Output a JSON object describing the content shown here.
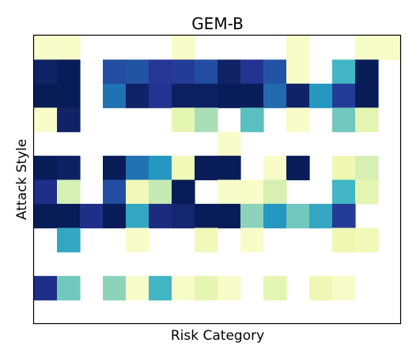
{
  "chart_data": {
    "type": "heatmap",
    "title": "GEM-B",
    "xlabel": "Risk Category",
    "ylabel": "Attack Style",
    "colormap": "YlGnBu",
    "missing_color": "#ffffff",
    "value_range": [
      0,
      1
    ],
    "n_rows": 12,
    "n_cols": 16,
    "grid": false,
    "values": [
      [
        0.05,
        0.05,
        null,
        null,
        null,
        null,
        0.05,
        null,
        null,
        null,
        null,
        0.05,
        null,
        null,
        0.05,
        0.05
      ],
      [
        0.97,
        1.0,
        null,
        0.8,
        0.78,
        0.87,
        0.85,
        0.8,
        0.97,
        0.88,
        0.78,
        0.05,
        null,
        0.5,
        1.0,
        null
      ],
      [
        1.0,
        1.0,
        null,
        0.7,
        0.97,
        0.88,
        0.98,
        0.98,
        1.0,
        1.0,
        0.72,
        0.97,
        0.6,
        0.85,
        1.0,
        null
      ],
      [
        0.05,
        0.97,
        null,
        null,
        null,
        null,
        0.15,
        0.3,
        null,
        0.45,
        null,
        0.05,
        null,
        0.4,
        0.15,
        null
      ],
      [
        null,
        null,
        null,
        null,
        null,
        null,
        null,
        null,
        0.05,
        null,
        null,
        null,
        null,
        null,
        null,
        null
      ],
      [
        1.0,
        0.98,
        null,
        1.0,
        0.7,
        0.6,
        0.1,
        1.0,
        1.0,
        null,
        0.05,
        1.0,
        null,
        0.12,
        0.2,
        null
      ],
      [
        0.9,
        0.2,
        null,
        0.8,
        0.1,
        0.25,
        1.0,
        null,
        0.05,
        0.05,
        0.2,
        null,
        null,
        0.5,
        0.15,
        null
      ],
      [
        1.0,
        1.0,
        0.9,
        1.0,
        0.55,
        0.92,
        0.95,
        1.0,
        1.0,
        0.35,
        0.6,
        0.4,
        0.55,
        0.85,
        null,
        null
      ],
      [
        null,
        0.55,
        null,
        null,
        0.05,
        null,
        null,
        0.1,
        null,
        0.05,
        null,
        null,
        null,
        0.12,
        0.1,
        null
      ],
      [
        null,
        null,
        null,
        null,
        null,
        null,
        null,
        null,
        null,
        null,
        null,
        null,
        null,
        null,
        null,
        null
      ],
      [
        0.9,
        0.4,
        null,
        0.35,
        0.05,
        0.5,
        0.05,
        0.15,
        0.05,
        null,
        0.15,
        null,
        0.12,
        0.05,
        null,
        null
      ],
      [
        null,
        null,
        null,
        null,
        null,
        null,
        null,
        null,
        null,
        null,
        null,
        null,
        null,
        null,
        null,
        null
      ]
    ]
  }
}
